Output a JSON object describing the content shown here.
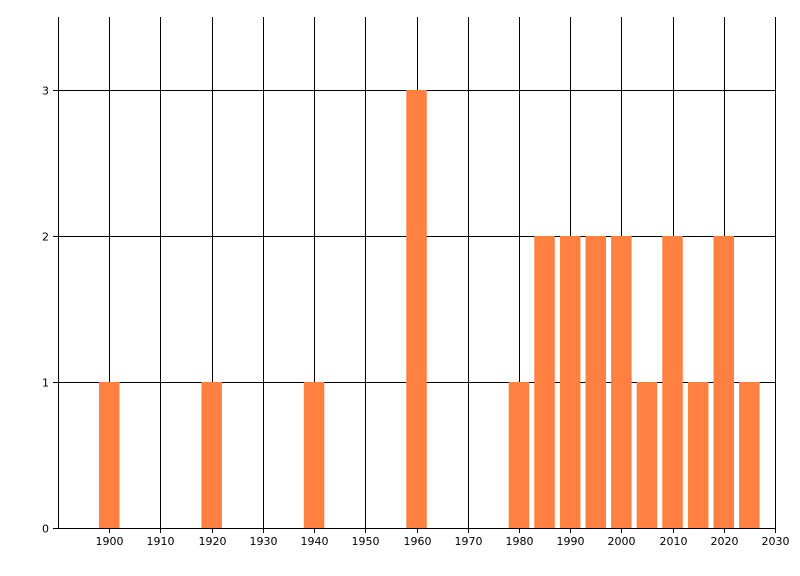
{
  "chart_data": {
    "type": "bar",
    "x": [
      1900,
      1920,
      1940,
      1960,
      1980,
      1985,
      1990,
      1995,
      2000,
      2005,
      2010,
      2015,
      2020,
      2025
    ],
    "values": [
      1,
      1,
      1,
      3,
      1,
      2,
      2,
      2,
      2,
      1,
      2,
      1,
      2,
      1
    ],
    "bar_width_years": 4,
    "xlim": [
      1890,
      2030
    ],
    "ylim": [
      0,
      3.5
    ],
    "xticks": [
      1900,
      1910,
      1920,
      1930,
      1940,
      1950,
      1960,
      1970,
      1980,
      1990,
      2000,
      2010,
      2020,
      2030
    ],
    "yticks": [
      0,
      1,
      2,
      3
    ],
    "title": "",
    "xlabel": "",
    "ylabel": "",
    "grid": true,
    "legend": "none",
    "bar_color": "#FF8040",
    "grid_color": "#000000"
  }
}
